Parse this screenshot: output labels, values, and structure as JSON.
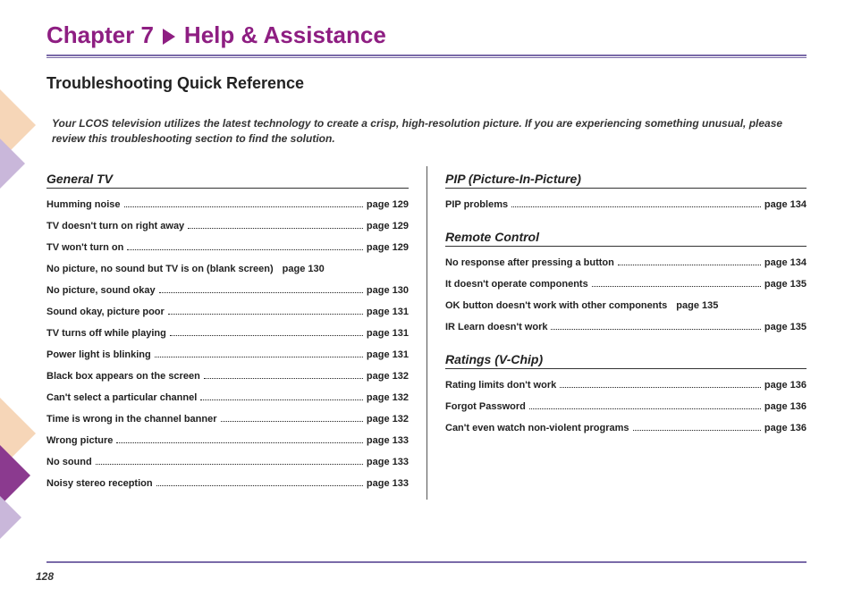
{
  "chapter": {
    "label": "Chapter 7",
    "title": "Help & Assistance"
  },
  "subtitle": "Troubleshooting Quick Reference",
  "intro": "Your LCOS television utilizes the latest technology to create a crisp, high-resolution picture. If you are experiencing something unusual, please review this troubleshooting section to find the solution.",
  "page_number": "128",
  "colors": {
    "heading": "#8e1e82",
    "rule": "#7a6aa8",
    "deco_peach": "#f6d6b8",
    "deco_purple": "#8b3a8f",
    "deco_lav": "#c9b7da"
  },
  "sections": {
    "general_tv": {
      "title": "General TV",
      "items": [
        {
          "label": "Humming noise",
          "page": "page 129"
        },
        {
          "label": "TV doesn't turn on right away",
          "page": "page 129"
        },
        {
          "label": "TV won't turn on",
          "page": "page 129"
        },
        {
          "label": "No picture, no sound but TV is on (blank screen)",
          "page": "page 130",
          "nodash": true
        },
        {
          "label": "No picture, sound okay",
          "page": "page 130"
        },
        {
          "label": "Sound okay, picture poor",
          "page": "page 131"
        },
        {
          "label": "TV turns off while playing",
          "page": "page 131"
        },
        {
          "label": "Power light is blinking",
          "page": "page 131"
        },
        {
          "label": "Black box appears on the screen",
          "page": "page 132"
        },
        {
          "label": "Can't select a particular channel",
          "page": "page 132"
        },
        {
          "label": "Time is wrong in the channel banner",
          "page": "page 132"
        },
        {
          "label": "Wrong picture",
          "page": "page 133"
        },
        {
          "label": "No sound",
          "page": "page 133"
        },
        {
          "label": "Noisy stereo reception",
          "page": "page 133"
        }
      ]
    },
    "pip": {
      "title": "PIP (Picture-In-Picture)",
      "items": [
        {
          "label": "PIP problems",
          "page": "page 134"
        }
      ]
    },
    "remote": {
      "title": "Remote Control",
      "items": [
        {
          "label": "No response  after pressing a button",
          "page": "page 134"
        },
        {
          "label": "It doesn't operate components",
          "page": "page 135"
        },
        {
          "label": "OK button doesn't work with other components",
          "page": "page 135",
          "nodash": true
        },
        {
          "label": "IR Learn doesn't work",
          "page": "page 135"
        }
      ]
    },
    "ratings": {
      "title": "Ratings (V-Chip)",
      "items": [
        {
          "label": "Rating limits don't work",
          "page": "page 136"
        },
        {
          "label": "Forgot Password",
          "page": "page 136"
        },
        {
          "label": "Can't even watch non-violent programs",
          "page": "page 136"
        }
      ]
    }
  }
}
